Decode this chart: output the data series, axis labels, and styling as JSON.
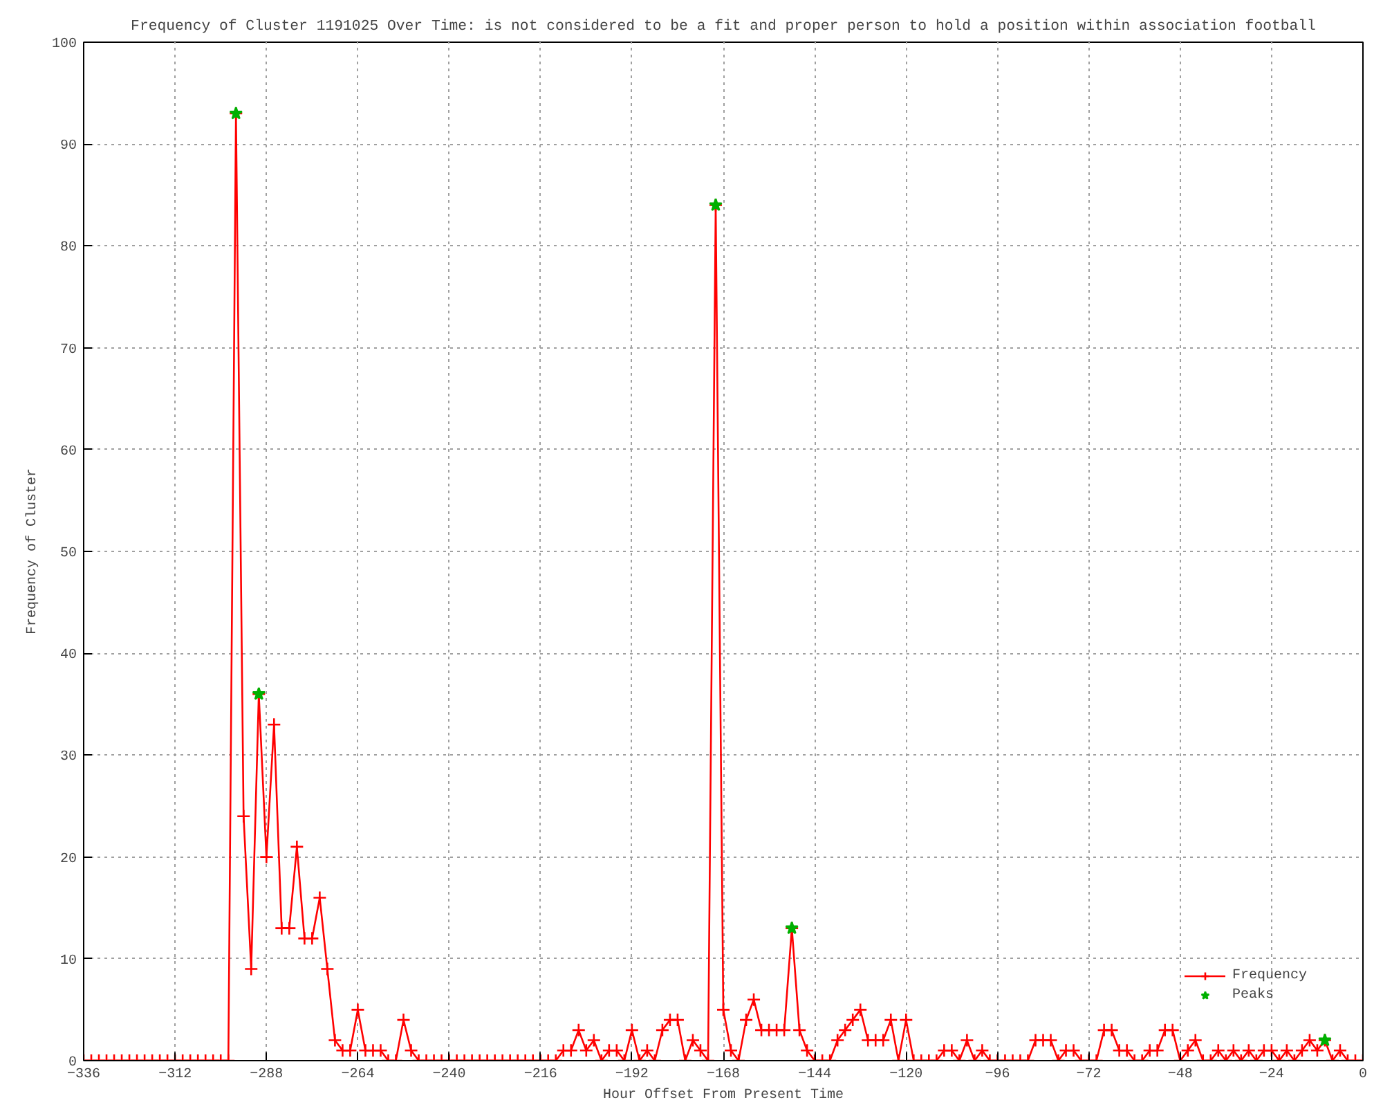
{
  "chart_data": {
    "type": "line",
    "title": "Frequency of Cluster 1191025 Over Time: is not considered to be a fit and proper person to hold a position within association football",
    "xlabel": "Hour Offset From Present Time",
    "ylabel": "Frequency of Cluster",
    "xlim": [
      -336,
      0
    ],
    "xticks": [
      -336,
      -312,
      -288,
      -264,
      -240,
      -216,
      -192,
      -168,
      -144,
      -120,
      -96,
      -72,
      -48,
      -24,
      0
    ],
    "ylim": [
      0,
      100
    ],
    "yticks": [
      0,
      10,
      20,
      30,
      40,
      50,
      60,
      70,
      80,
      90,
      100
    ],
    "grid": true,
    "legend": "bottom right",
    "line_style": "solid",
    "series": [
      {
        "name": "Frequency",
        "marker": "cross",
        "color": "#ff0000",
        "x": [
          -336,
          -334,
          -332,
          -330,
          -328,
          -326,
          -324,
          -322,
          -320,
          -318,
          -316,
          -314,
          -312,
          -310,
          -308,
          -306,
          -304,
          -302,
          -300,
          -298,
          -296,
          -294,
          -292,
          -290,
          -288,
          -286,
          -284,
          -282,
          -280,
          -278,
          -276,
          -274,
          -272,
          -270,
          -268,
          -266,
          -264,
          -262,
          -260,
          -258,
          -256,
          -254,
          -252,
          -250,
          -248,
          -246,
          -244,
          -242,
          -240,
          -238,
          -236,
          -234,
          -232,
          -230,
          -228,
          -226,
          -224,
          -222,
          -220,
          -218,
          -216,
          -214,
          -212,
          -210,
          -208,
          -206,
          -204,
          -202,
          -200,
          -198,
          -196,
          -194,
          -192,
          -190,
          -188,
          -186,
          -184,
          -182,
          -180,
          -178,
          -176,
          -174,
          -172,
          -170,
          -168,
          -166,
          -164,
          -162,
          -160,
          -158,
          -156,
          -154,
          -152,
          -150,
          -148,
          -146,
          -144,
          -142,
          -140,
          -138,
          -136,
          -134,
          -132,
          -130,
          -128,
          -126,
          -124,
          -122,
          -120,
          -118,
          -116,
          -114,
          -112,
          -110,
          -108,
          -106,
          -104,
          -102,
          -100,
          -98,
          -96,
          -94,
          -92,
          -90,
          -88,
          -86,
          -84,
          -82,
          -80,
          -78,
          -76,
          -74,
          -72,
          -70,
          -68,
          -66,
          -64,
          -62,
          -60,
          -58,
          -56,
          -54,
          -52,
          -50,
          -48,
          -46,
          -44,
          -42,
          -40,
          -38,
          -36,
          -34,
          -32,
          -30,
          -28,
          -26,
          -24,
          -22,
          -20,
          -18,
          -16,
          -14,
          -12,
          -10,
          -8,
          -6,
          -4,
          -2,
          0
        ],
        "values": [
          0,
          0,
          0,
          0,
          0,
          0,
          0,
          0,
          0,
          0,
          0,
          0,
          0,
          0,
          0,
          0,
          0,
          0,
          0,
          0,
          93,
          24,
          9,
          36,
          20,
          33,
          13,
          13,
          21,
          12,
          12,
          16,
          9,
          2,
          1,
          1,
          5,
          1,
          1,
          1,
          0,
          0,
          4,
          1,
          0,
          0,
          0,
          0,
          0,
          0,
          0,
          0,
          0,
          0,
          0,
          0,
          0,
          0,
          0,
          0,
          0,
          0,
          0,
          1,
          1,
          3,
          1,
          2,
          0,
          1,
          1,
          0,
          3,
          0,
          1,
          0,
          3,
          4,
          4,
          0,
          2,
          1,
          0,
          84,
          5,
          1,
          0,
          4,
          6,
          3,
          3,
          3,
          3,
          13,
          3,
          1,
          0,
          0,
          0,
          2,
          3,
          4,
          5,
          2,
          2,
          2,
          4,
          0,
          4,
          0,
          0,
          0,
          0,
          1,
          1,
          0,
          2,
          0,
          1,
          0,
          0,
          0,
          0,
          0,
          0,
          2,
          2,
          2,
          0,
          1,
          1,
          0,
          0,
          0,
          3,
          3,
          1,
          1,
          0,
          0,
          1,
          1,
          3,
          3,
          0,
          1,
          2,
          0,
          0,
          1,
          0,
          1,
          0,
          1,
          0,
          1,
          1,
          0,
          1,
          0,
          1,
          2,
          1,
          2,
          0,
          1,
          0,
          0,
          0
        ]
      },
      {
        "name": "Peaks",
        "type": "scatter",
        "marker": "star",
        "color": "#00b000",
        "x": [
          -296,
          -290,
          -170,
          -150,
          -10
        ],
        "values": [
          93,
          36,
          84,
          13,
          2
        ]
      }
    ]
  }
}
